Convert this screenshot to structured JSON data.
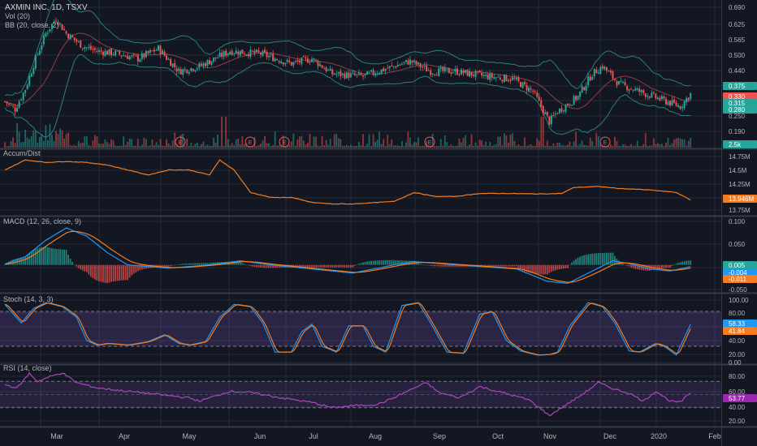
{
  "colors": {
    "bg": "#131722",
    "grid": "#262b38",
    "sep": "#363a45",
    "text": "#b2b5be",
    "up": "#26a69a",
    "down": "#ef5350",
    "bb": "#2a7f7a",
    "bbbasis": "#b2484a",
    "bbfill": "rgba(38,166,154,0.06)",
    "ad": "#f57c1f",
    "macd": "#2196f3",
    "signal": "#f57c1f",
    "stochK": "#2196f3",
    "stochD": "#f57c1f",
    "stochBand": "rgba(126,87,194,0.22)",
    "rsi": "#ab47bc",
    "rsiBand": "rgba(126,87,194,0.18)",
    "dash": "#787b86"
  },
  "header": {
    "symbol": "AXMIN INC, 1D, TSXV",
    "vol": "Vol (20)",
    "bb": "BB (20, close, 2)"
  },
  "panes": {
    "price": {
      "ticks": [
        "0.690",
        "0.625",
        "0.565",
        "0.500",
        "0.440",
        "0.375",
        "0.315",
        "0.250",
        "0.190"
      ],
      "badges": [
        {
          "text": "0.375",
          "color": "#26a69a"
        },
        {
          "text": "0.330",
          "color": "#ef5350"
        },
        {
          "text": "0.315",
          "color": "#26a69a"
        },
        {
          "text": "0.280",
          "color": "#26a69a"
        }
      ],
      "volbadge": "2.5k",
      "earnings": [
        "E",
        "E",
        "E",
        "E",
        "E",
        "E"
      ]
    },
    "ad": {
      "title": "Accum/Dist",
      "ticks": [
        "14.75M",
        "14.5M",
        "14.25M",
        "14M",
        "13.75M"
      ],
      "badge": "13.946M"
    },
    "macd": {
      "title": "MACD (12, 26, close, 9)",
      "ticks": [
        "0.100",
        "0.050",
        "0.000",
        "-0.050"
      ],
      "badges": [
        {
          "text": "0.005",
          "color": "#26a69a"
        },
        {
          "text": "-0.004",
          "color": "#2196f3"
        },
        {
          "text": "-0.011",
          "color": "#f57c1f"
        }
      ]
    },
    "stoch": {
      "title": "Stoch (14, 3, 3)",
      "ticks": [
        "100.00",
        "80.00",
        "60.00",
        "40.00",
        "20.00",
        "0.00"
      ],
      "badges": [
        {
          "text": "58.33",
          "color": "#2196f3"
        },
        {
          "text": "41.84",
          "color": "#f57c1f"
        }
      ]
    },
    "rsi": {
      "title": "RSI (14, close)",
      "ticks": [
        "80.00",
        "60.00",
        "40.00",
        "20.00"
      ],
      "badge": "53.77"
    }
  },
  "xaxis": {
    "labels": [
      "Mar",
      "Apr",
      "May",
      "Jun",
      "Jul",
      "Aug",
      "Sep",
      "Oct",
      "Nov",
      "Dec",
      "2020",
      "Feb"
    ]
  },
  "chart_data": {
    "type": "candlestick",
    "symbol": "AXMIN INC",
    "interval": "1D",
    "exchange": "TSXV",
    "ylim": [
      0.16,
      0.72
    ],
    "price_keypoints": [
      [
        0,
        0.33
      ],
      [
        5,
        0.3
      ],
      [
        10,
        0.38
      ],
      [
        15,
        0.5
      ],
      [
        20,
        0.6
      ],
      [
        25,
        0.66
      ],
      [
        30,
        0.6
      ],
      [
        38,
        0.55
      ],
      [
        45,
        0.53
      ],
      [
        55,
        0.52
      ],
      [
        65,
        0.5
      ],
      [
        75,
        0.54
      ],
      [
        85,
        0.45
      ],
      [
        95,
        0.47
      ],
      [
        110,
        0.53
      ],
      [
        125,
        0.52
      ],
      [
        140,
        0.48
      ],
      [
        150,
        0.5
      ],
      [
        160,
        0.44
      ],
      [
        175,
        0.43
      ],
      [
        190,
        0.47
      ],
      [
        198,
        0.49
      ],
      [
        208,
        0.45
      ],
      [
        220,
        0.45
      ],
      [
        235,
        0.43
      ],
      [
        248,
        0.42
      ],
      [
        258,
        0.37
      ],
      [
        262,
        0.31
      ],
      [
        266,
        0.25
      ],
      [
        270,
        0.29
      ],
      [
        280,
        0.35
      ],
      [
        287,
        0.44
      ],
      [
        292,
        0.47
      ],
      [
        300,
        0.4
      ],
      [
        310,
        0.37
      ],
      [
        320,
        0.34
      ],
      [
        330,
        0.31
      ],
      [
        335,
        0.36
      ]
    ],
    "series": [
      {
        "name": "Accum/Dist",
        "ylim": [
          13.7,
          14.9
        ],
        "keypoints": [
          [
            0,
            14.55
          ],
          [
            10,
            14.75
          ],
          [
            20,
            14.7
          ],
          [
            30,
            14.72
          ],
          [
            40,
            14.7
          ],
          [
            50,
            14.65
          ],
          [
            60,
            14.55
          ],
          [
            70,
            14.45
          ],
          [
            80,
            14.55
          ],
          [
            90,
            14.55
          ],
          [
            100,
            14.45
          ],
          [
            105,
            14.75
          ],
          [
            112,
            14.55
          ],
          [
            120,
            14.1
          ],
          [
            130,
            14.0
          ],
          [
            140,
            14.0
          ],
          [
            150,
            13.9
          ],
          [
            160,
            13.87
          ],
          [
            170,
            13.87
          ],
          [
            190,
            13.92
          ],
          [
            200,
            14.1
          ],
          [
            210,
            14.02
          ],
          [
            220,
            14.02
          ],
          [
            232,
            14.08
          ],
          [
            245,
            14.08
          ],
          [
            260,
            14.07
          ],
          [
            272,
            14.08
          ],
          [
            278,
            14.2
          ],
          [
            290,
            14.22
          ],
          [
            300,
            14.18
          ],
          [
            315,
            14.15
          ],
          [
            328,
            14.1
          ],
          [
            335,
            13.95
          ]
        ]
      },
      {
        "name": "MACD",
        "ylim": [
          -0.06,
          0.11
        ],
        "keypoints": [
          [
            0,
            0.002
          ],
          [
            10,
            0.02
          ],
          [
            20,
            0.06
          ],
          [
            30,
            0.09
          ],
          [
            40,
            0.07
          ],
          [
            50,
            0.03
          ],
          [
            60,
            0.0
          ],
          [
            80,
            -0.008
          ],
          [
            100,
            0.0
          ],
          [
            115,
            0.01
          ],
          [
            130,
            0.0
          ],
          [
            150,
            -0.01
          ],
          [
            170,
            -0.02
          ],
          [
            190,
            0.0
          ],
          [
            200,
            0.008
          ],
          [
            215,
            0.002
          ],
          [
            235,
            -0.005
          ],
          [
            250,
            -0.01
          ],
          [
            265,
            -0.04
          ],
          [
            275,
            -0.045
          ],
          [
            285,
            -0.02
          ],
          [
            297,
            0.01
          ],
          [
            305,
            0.003
          ],
          [
            315,
            -0.01
          ],
          [
            325,
            -0.015
          ],
          [
            335,
            -0.004
          ]
        ]
      },
      {
        "name": "Stoch",
        "ylim": [
          -5,
          105
        ],
        "keypoints": [
          [
            0,
            92
          ],
          [
            8,
            60
          ],
          [
            14,
            85
          ],
          [
            20,
            95
          ],
          [
            28,
            88
          ],
          [
            35,
            70
          ],
          [
            40,
            30
          ],
          [
            45,
            22
          ],
          [
            50,
            25
          ],
          [
            60,
            22
          ],
          [
            70,
            28
          ],
          [
            78,
            40
          ],
          [
            85,
            25
          ],
          [
            90,
            22
          ],
          [
            98,
            28
          ],
          [
            105,
            70
          ],
          [
            112,
            92
          ],
          [
            120,
            88
          ],
          [
            126,
            60
          ],
          [
            132,
            10
          ],
          [
            140,
            10
          ],
          [
            145,
            45
          ],
          [
            150,
            58
          ],
          [
            155,
            20
          ],
          [
            162,
            10
          ],
          [
            168,
            55
          ],
          [
            175,
            55
          ],
          [
            180,
            20
          ],
          [
            186,
            10
          ],
          [
            194,
            90
          ],
          [
            202,
            95
          ],
          [
            208,
            60
          ],
          [
            216,
            10
          ],
          [
            224,
            8
          ],
          [
            232,
            75
          ],
          [
            238,
            80
          ],
          [
            245,
            30
          ],
          [
            252,
            12
          ],
          [
            260,
            5
          ],
          [
            266,
            6
          ],
          [
            270,
            10
          ],
          [
            276,
            55
          ],
          [
            285,
            95
          ],
          [
            292,
            88
          ],
          [
            298,
            60
          ],
          [
            305,
            12
          ],
          [
            310,
            10
          ],
          [
            318,
            25
          ],
          [
            322,
            20
          ],
          [
            328,
            5
          ],
          [
            335,
            58
          ]
        ]
      },
      {
        "name": "RSI",
        "ylim": [
          10,
          90
        ],
        "keypoints": [
          [
            0,
            65
          ],
          [
            6,
            60
          ],
          [
            12,
            82
          ],
          [
            16,
            70
          ],
          [
            22,
            77
          ],
          [
            28,
            83
          ],
          [
            35,
            68
          ],
          [
            45,
            60
          ],
          [
            60,
            55
          ],
          [
            75,
            50
          ],
          [
            90,
            45
          ],
          [
            95,
            40
          ],
          [
            110,
            55
          ],
          [
            120,
            53
          ],
          [
            135,
            45
          ],
          [
            150,
            38
          ],
          [
            160,
            30
          ],
          [
            170,
            33
          ],
          [
            182,
            35
          ],
          [
            190,
            45
          ],
          [
            200,
            60
          ],
          [
            206,
            68
          ],
          [
            212,
            53
          ],
          [
            222,
            45
          ],
          [
            232,
            62
          ],
          [
            244,
            52
          ],
          [
            256,
            42
          ],
          [
            262,
            28
          ],
          [
            266,
            18
          ],
          [
            272,
            30
          ],
          [
            282,
            50
          ],
          [
            290,
            68
          ],
          [
            298,
            58
          ],
          [
            305,
            52
          ],
          [
            312,
            40
          ],
          [
            318,
            55
          ],
          [
            325,
            40
          ],
          [
            330,
            38
          ],
          [
            335,
            53
          ]
        ]
      }
    ]
  }
}
